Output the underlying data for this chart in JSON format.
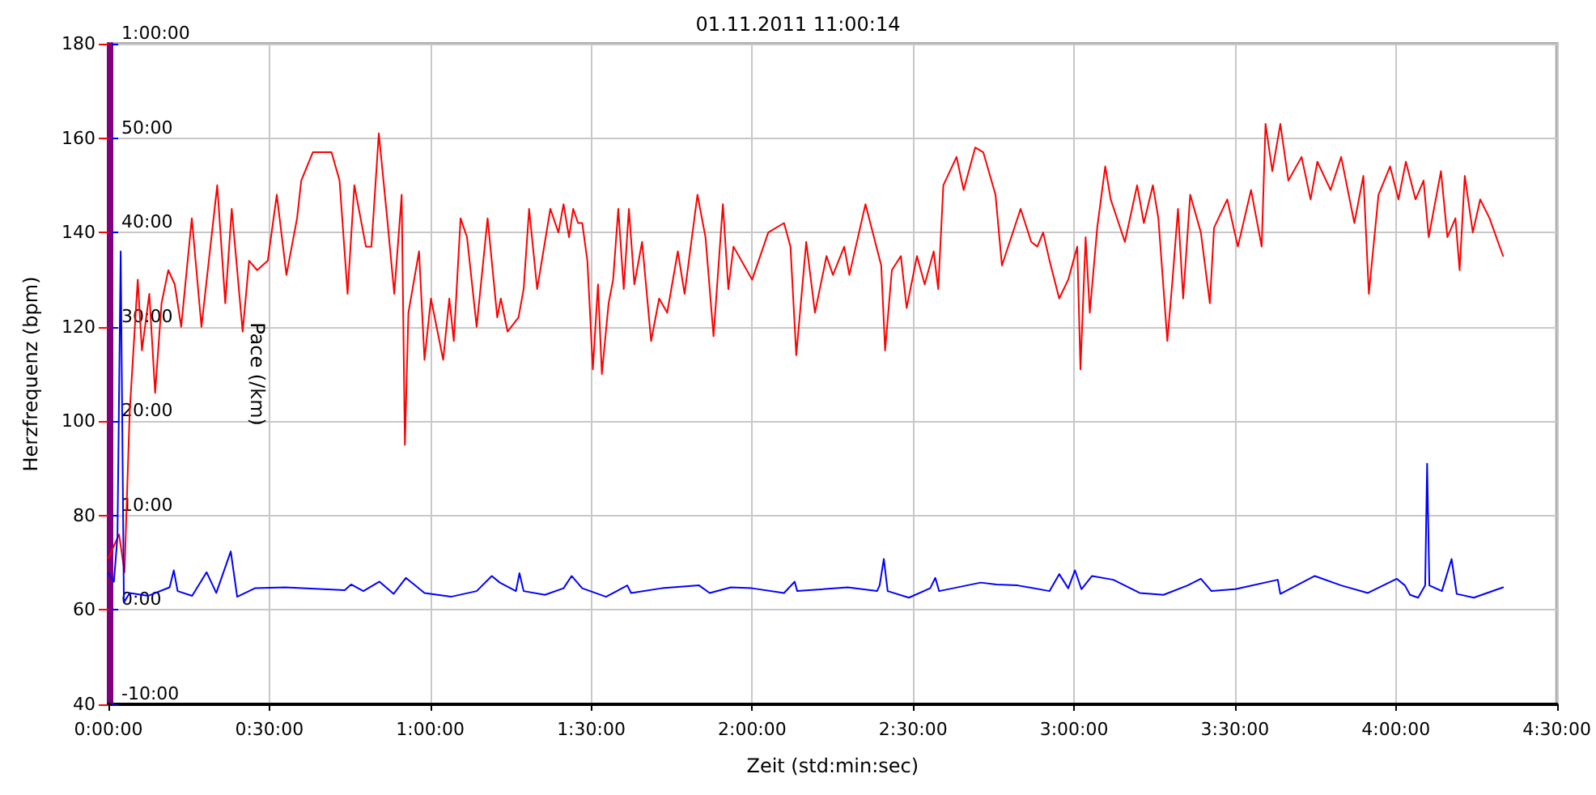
{
  "chart_data": {
    "type": "line",
    "title": "01.11.2011 11:00:14",
    "xlabel": "Zeit (std:min:sec)",
    "ylabel": "Herzfrequenz (bpm)",
    "y2label": "Pace (/km)",
    "xlim": [
      0,
      4.5
    ],
    "xticks": [
      {
        "value": 0,
        "label": "0:00:00"
      },
      {
        "value": 0.5,
        "label": "0:30:00"
      },
      {
        "value": 1,
        "label": "1:00:00"
      },
      {
        "value": 1.5,
        "label": "1:30:00"
      },
      {
        "value": 2,
        "label": "2:00:00"
      },
      {
        "value": 2.5,
        "label": "2:30:00"
      },
      {
        "value": 3,
        "label": "3:00:00"
      },
      {
        "value": 3.5,
        "label": "3:30:00"
      },
      {
        "value": 4,
        "label": "4:00:00"
      },
      {
        "value": 4.5,
        "label": "4:30:00"
      }
    ],
    "ylim": [
      40,
      180
    ],
    "yticks": [
      40,
      60,
      80,
      100,
      120,
      140,
      160,
      180
    ],
    "y2lim": [
      -10,
      60
    ],
    "y2ticks": [
      {
        "value": -10,
        "label": "-10:00"
      },
      {
        "value": 0,
        "label": "0:00"
      },
      {
        "value": 10,
        "label": "10:00"
      },
      {
        "value": 20,
        "label": "20:00"
      },
      {
        "value": 30,
        "label": "30:00"
      },
      {
        "value": 40,
        "label": "40:00"
      },
      {
        "value": 50,
        "label": "50:00"
      },
      {
        "value": 60,
        "label": "1:00:00"
      }
    ],
    "grid": true,
    "marker": "none",
    "line_style": "solid",
    "series": [
      {
        "color": "#ff0000",
        "x": [
          0,
          0.033,
          0.05,
          0.066,
          0.091,
          0.104,
          0.127,
          0.145,
          0.165,
          0.186,
          0.206,
          0.226,
          0.259,
          0.289,
          0.338,
          0.363,
          0.383,
          0.417,
          0.437,
          0.462,
          0.495,
          0.523,
          0.553,
          0.586,
          0.599,
          0.635,
          0.693,
          0.718,
          0.743,
          0.764,
          0.8,
          0.817,
          0.84,
          0.866,
          0.888,
          0.911,
          0.921,
          0.932,
          0.965,
          0.982,
          1.002,
          1.04,
          1.059,
          1.073,
          1.094,
          1.114,
          1.144,
          1.178,
          1.208,
          1.219,
          1.24,
          1.274,
          1.29,
          1.307,
          1.332,
          1.373,
          1.398,
          1.414,
          1.431,
          1.444,
          1.459,
          1.472,
          1.488,
          1.505,
          1.521,
          1.533,
          1.554,
          1.568,
          1.584,
          1.601,
          1.617,
          1.634,
          1.658,
          1.686,
          1.711,
          1.736,
          1.769,
          1.79,
          1.83,
          1.855,
          1.88,
          1.909,
          1.926,
          1.942,
          2.0,
          2.05,
          2.099,
          2.119,
          2.137,
          2.168,
          2.195,
          2.231,
          2.251,
          2.286,
          2.302,
          2.352,
          2.401,
          2.413,
          2.434,
          2.462,
          2.48,
          2.512,
          2.536,
          2.564,
          2.578,
          2.594,
          2.635,
          2.657,
          2.693,
          2.718,
          2.756,
          2.776,
          2.834,
          2.867,
          2.886,
          2.904,
          2.924,
          2.954,
          2.982,
          3.01,
          3.02,
          3.036,
          3.049,
          3.072,
          3.097,
          3.114,
          3.158,
          3.196,
          3.217,
          3.245,
          3.262,
          3.29,
          3.306,
          3.323,
          3.339,
          3.361,
          3.394,
          3.422,
          3.435,
          3.476,
          3.509,
          3.55,
          3.583,
          3.595,
          3.616,
          3.641,
          3.666,
          3.707,
          3.735,
          3.756,
          3.797,
          3.83,
          3.871,
          3.899,
          3.916,
          3.946,
          3.982,
          4.008,
          4.031,
          4.061,
          4.086,
          4.102,
          4.14,
          4.16,
          4.185,
          4.198,
          4.214,
          4.239,
          4.262,
          4.291,
          4.333
        ],
        "values": [
          71,
          76,
          68,
          102,
          130,
          115,
          127,
          106,
          125,
          132,
          129,
          120,
          143,
          120,
          150,
          125,
          145,
          119,
          134,
          132,
          134,
          148,
          131,
          143,
          151,
          157,
          157,
          151,
          127,
          150,
          137,
          137,
          161,
          143,
          127,
          148,
          95,
          123,
          136,
          113,
          126,
          113,
          126,
          117,
          143,
          139,
          120,
          143,
          122,
          126,
          119,
          122,
          128,
          145,
          128,
          145,
          140,
          146,
          139,
          145,
          142,
          142,
          134,
          111,
          129,
          110,
          125,
          130,
          145,
          128,
          145,
          129,
          138,
          117,
          126,
          123,
          136,
          127,
          148,
          139,
          118,
          146,
          128,
          137,
          130,
          140,
          142,
          137,
          114,
          138,
          123,
          135,
          131,
          137,
          131,
          146,
          133,
          115,
          132,
          135,
          124,
          135,
          129,
          136,
          128,
          150,
          156,
          149,
          158,
          157,
          148,
          133,
          145,
          138,
          137,
          140,
          134,
          126,
          130,
          137,
          111,
          139,
          123,
          141,
          154,
          147,
          138,
          150,
          142,
          150,
          143,
          117,
          130,
          145,
          126,
          148,
          140,
          125,
          141,
          147,
          137,
          149,
          137,
          163,
          153,
          163,
          151,
          156,
          147,
          155,
          149,
          156,
          142,
          152,
          127,
          148,
          154,
          147,
          155,
          147,
          151,
          139,
          153,
          139,
          143,
          132,
          152,
          140,
          147,
          143,
          135
        ]
      },
      {
        "color": "#0000ff",
        "axis": "y2",
        "x": [
          0,
          0.017,
          0.028,
          0.038,
          0.048,
          0.066,
          0.124,
          0.19,
          0.203,
          0.215,
          0.26,
          0.305,
          0.335,
          0.38,
          0.4,
          0.455,
          0.55,
          0.734,
          0.754,
          0.792,
          0.842,
          0.886,
          0.924,
          0.982,
          1.064,
          1.144,
          1.191,
          1.216,
          1.266,
          1.277,
          1.29,
          1.356,
          1.414,
          1.439,
          1.472,
          1.546,
          1.612,
          1.624,
          1.719,
          1.835,
          1.868,
          1.934,
          2.0,
          2.099,
          2.132,
          2.14,
          2.297,
          2.388,
          2.396,
          2.409,
          2.421,
          2.487,
          2.553,
          2.569,
          2.581,
          2.71,
          2.759,
          2.825,
          2.924,
          2.954,
          2.982,
          3.003,
          3.023,
          3.056,
          3.122,
          3.204,
          3.278,
          3.353,
          3.394,
          3.427,
          3.501,
          3.633,
          3.641,
          3.748,
          3.83,
          3.913,
          4.003,
          4.028,
          4.044,
          4.069,
          4.091,
          4.097,
          4.104,
          4.143,
          4.173,
          4.189,
          4.242,
          4.333
        ],
        "values": [
          3.9,
          3.0,
          7.8,
          38.0,
          0.8,
          1.8,
          1.5,
          2.4,
          4.2,
          2.0,
          1.5,
          4.0,
          1.8,
          6.2,
          1.4,
          2.3,
          2.4,
          2.1,
          2.7,
          2.0,
          3.0,
          1.7,
          3.4,
          1.8,
          1.4,
          2.0,
          3.6,
          2.9,
          2.0,
          3.9,
          2.0,
          1.6,
          2.3,
          3.6,
          2.3,
          1.4,
          2.6,
          1.8,
          2.3,
          2.6,
          1.8,
          2.4,
          2.3,
          1.8,
          3.0,
          2.0,
          2.4,
          2.0,
          2.6,
          5.4,
          2.0,
          1.3,
          2.3,
          3.4,
          2.0,
          2.9,
          2.7,
          2.6,
          2.0,
          3.8,
          2.3,
          4.2,
          2.2,
          3.6,
          3.2,
          1.8,
          1.6,
          2.6,
          3.3,
          2.0,
          2.2,
          3.2,
          1.7,
          3.6,
          2.6,
          1.8,
          3.3,
          2.6,
          1.6,
          1.3,
          2.6,
          15.5,
          2.6,
          2.0,
          5.4,
          1.7,
          1.3,
          2.4
        ]
      }
    ]
  }
}
